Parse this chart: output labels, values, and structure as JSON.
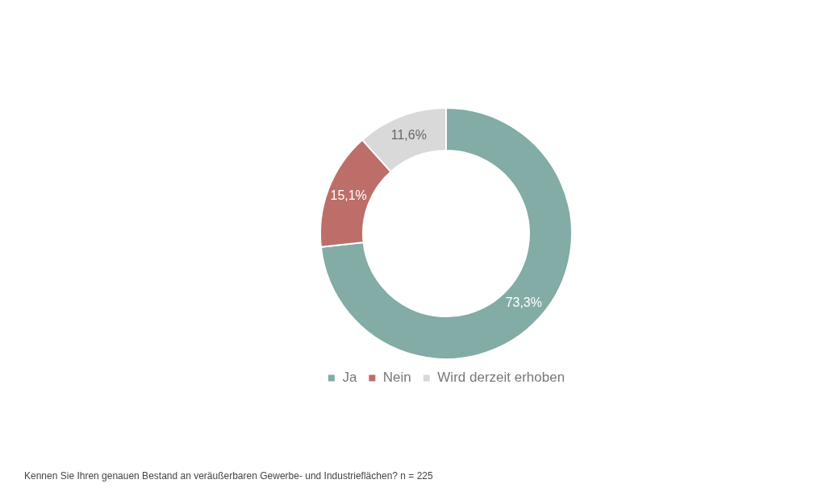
{
  "chart_data": {
    "type": "donut",
    "categories": [
      "Ja",
      "Nein",
      "Wird derzeit erhoben"
    ],
    "values": [
      73.3,
      15.1,
      11.6
    ],
    "colors": [
      "#82aca5",
      "#bd6e68",
      "#d9d9d9"
    ],
    "value_labels": [
      "73,3%",
      "15,1%",
      "11,6%"
    ],
    "legend": "bottom",
    "annotations": [
      "Kennen Sie Ihren genauen Bestand an veräußerbaren Gewerbe- und Industrieflächen? n = 225"
    ]
  }
}
